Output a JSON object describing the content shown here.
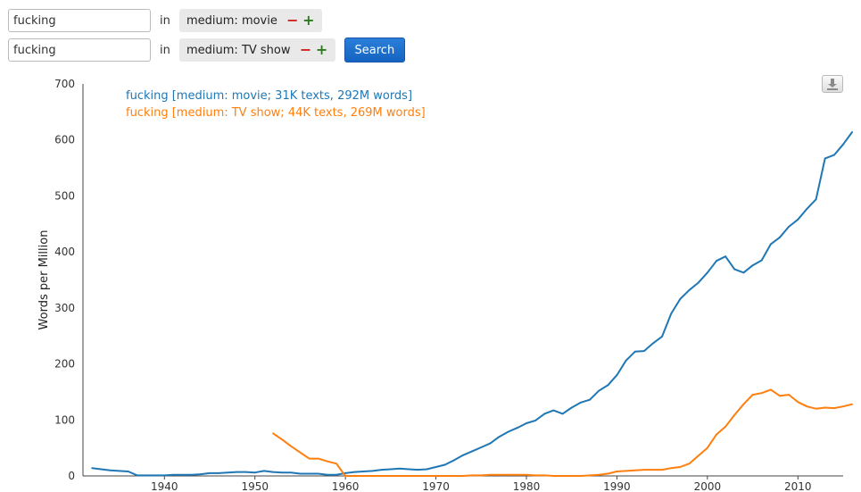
{
  "query_rows": [
    {
      "term_value": "fucking",
      "in_label": "in",
      "facet_label": "medium: movie",
      "minus_label": "−",
      "plus_label": "+"
    },
    {
      "term_value": "fucking",
      "in_label": "in",
      "facet_label": "medium: TV show",
      "minus_label": "−",
      "plus_label": "+"
    }
  ],
  "search_button": {
    "label": "Search"
  },
  "download_button": {
    "icon": "download-icon"
  },
  "colors": {
    "series_1": "#1f77b4",
    "series_2": "#ff7f0e",
    "search_button": "#1a6fd1",
    "minus": "#d21f1f",
    "plus": "#2c7a1e"
  },
  "chart_data": {
    "type": "line",
    "title": "",
    "xlabel": "",
    "ylabel": "Words per Million",
    "xlim": [
      1931,
      2015
    ],
    "ylim": [
      0,
      700
    ],
    "x_ticks": [
      1940,
      1950,
      1960,
      1970,
      1980,
      1990,
      2000,
      2010
    ],
    "y_ticks": [
      0,
      100,
      200,
      300,
      400,
      500,
      600,
      700
    ],
    "grid": false,
    "legend_position": "top-left",
    "series": [
      {
        "name": "fucking [medium: movie; 31K texts, 292M words]",
        "color": "#1f77b4",
        "points": [
          [
            1932,
            14
          ],
          [
            1933,
            12
          ],
          [
            1934,
            10
          ],
          [
            1935,
            9
          ],
          [
            1936,
            8
          ],
          [
            1937,
            1
          ],
          [
            1938,
            1
          ],
          [
            1939,
            1
          ],
          [
            1940,
            1
          ],
          [
            1941,
            2
          ],
          [
            1942,
            2
          ],
          [
            1943,
            2
          ],
          [
            1944,
            3
          ],
          [
            1945,
            5
          ],
          [
            1946,
            5
          ],
          [
            1947,
            6
          ],
          [
            1948,
            7
          ],
          [
            1949,
            7
          ],
          [
            1950,
            6
          ],
          [
            1951,
            9
          ],
          [
            1952,
            7
          ],
          [
            1953,
            6
          ],
          [
            1954,
            6
          ],
          [
            1955,
            4
          ],
          [
            1956,
            4
          ],
          [
            1957,
            4
          ],
          [
            1958,
            2
          ],
          [
            1959,
            2
          ],
          [
            1960,
            5
          ],
          [
            1961,
            7
          ],
          [
            1962,
            8
          ],
          [
            1963,
            9
          ],
          [
            1964,
            11
          ],
          [
            1965,
            12
          ],
          [
            1966,
            13
          ],
          [
            1967,
            12
          ],
          [
            1968,
            11
          ],
          [
            1969,
            12
          ],
          [
            1970,
            16
          ],
          [
            1971,
            20
          ],
          [
            1972,
            28
          ],
          [
            1973,
            37
          ],
          [
            1974,
            44
          ],
          [
            1975,
            51
          ],
          [
            1976,
            58
          ],
          [
            1977,
            70
          ],
          [
            1978,
            79
          ],
          [
            1979,
            86
          ],
          [
            1980,
            94
          ],
          [
            1981,
            99
          ],
          [
            1982,
            111
          ],
          [
            1983,
            117
          ],
          [
            1984,
            111
          ],
          [
            1985,
            122
          ],
          [
            1986,
            131
          ],
          [
            1987,
            136
          ],
          [
            1988,
            152
          ],
          [
            1989,
            162
          ],
          [
            1990,
            180
          ],
          [
            1991,
            206
          ],
          [
            1992,
            222
          ],
          [
            1993,
            223
          ],
          [
            1994,
            237
          ],
          [
            1995,
            249
          ],
          [
            1996,
            290
          ],
          [
            1997,
            316
          ],
          [
            1998,
            332
          ],
          [
            1999,
            345
          ],
          [
            2000,
            363
          ],
          [
            2001,
            384
          ],
          [
            2002,
            392
          ],
          [
            2003,
            369
          ],
          [
            2004,
            363
          ],
          [
            2005,
            376
          ],
          [
            2006,
            385
          ],
          [
            2007,
            414
          ],
          [
            2008,
            426
          ],
          [
            2009,
            445
          ],
          [
            2010,
            458
          ],
          [
            2011,
            477
          ],
          [
            2012,
            494
          ],
          [
            2013,
            567
          ],
          [
            2014,
            573
          ],
          [
            2015,
            592
          ],
          [
            2016,
            614
          ]
        ]
      },
      {
        "name": "fucking [medium: TV show; 44K texts, 269M words]",
        "color": "#ff7f0e",
        "points": [
          [
            1952,
            76
          ],
          [
            1953,
            65
          ],
          [
            1954,
            53
          ],
          [
            1955,
            42
          ],
          [
            1956,
            31
          ],
          [
            1957,
            31
          ],
          [
            1958,
            26
          ],
          [
            1959,
            22
          ],
          [
            1960,
            0
          ],
          [
            1961,
            0
          ],
          [
            1962,
            0
          ],
          [
            1963,
            0
          ],
          [
            1964,
            0
          ],
          [
            1965,
            0
          ],
          [
            1966,
            0
          ],
          [
            1967,
            0
          ],
          [
            1968,
            0
          ],
          [
            1969,
            0
          ],
          [
            1970,
            0
          ],
          [
            1971,
            0
          ],
          [
            1972,
            0
          ],
          [
            1973,
            0
          ],
          [
            1974,
            1
          ],
          [
            1975,
            1
          ],
          [
            1976,
            2
          ],
          [
            1977,
            2
          ],
          [
            1978,
            2
          ],
          [
            1979,
            2
          ],
          [
            1980,
            2
          ],
          [
            1981,
            1
          ],
          [
            1982,
            1
          ],
          [
            1983,
            0
          ],
          [
            1984,
            0
          ],
          [
            1985,
            0
          ],
          [
            1986,
            0
          ],
          [
            1987,
            1
          ],
          [
            1988,
            2
          ],
          [
            1989,
            4
          ],
          [
            1990,
            8
          ],
          [
            1991,
            9
          ],
          [
            1992,
            10
          ],
          [
            1993,
            11
          ],
          [
            1994,
            11
          ],
          [
            1995,
            11
          ],
          [
            1996,
            14
          ],
          [
            1997,
            16
          ],
          [
            1998,
            22
          ],
          [
            1999,
            36
          ],
          [
            2000,
            50
          ],
          [
            2001,
            74
          ],
          [
            2002,
            88
          ],
          [
            2003,
            109
          ],
          [
            2004,
            128
          ],
          [
            2005,
            145
          ],
          [
            2006,
            148
          ],
          [
            2007,
            154
          ],
          [
            2008,
            143
          ],
          [
            2009,
            145
          ],
          [
            2010,
            132
          ],
          [
            2011,
            124
          ],
          [
            2012,
            120
          ],
          [
            2013,
            122
          ],
          [
            2014,
            121
          ],
          [
            2015,
            124
          ],
          [
            2016,
            128
          ]
        ]
      }
    ]
  }
}
